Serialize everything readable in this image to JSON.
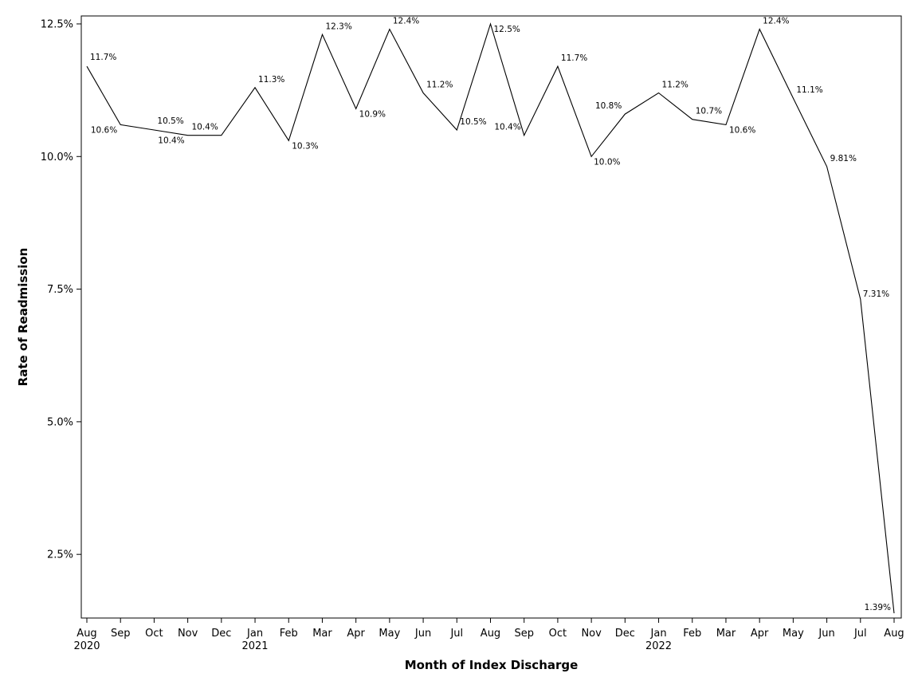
{
  "chart_data": {
    "type": "line",
    "title": "",
    "xlabel": "Month of Index Discharge",
    "ylabel": "Rate of Readmission",
    "ylim": [
      1.3,
      12.65
    ],
    "yticks": [
      2.5,
      5.0,
      7.5,
      10.0,
      12.5
    ],
    "ytick_labels": [
      "2.5%",
      "5.0%",
      "7.5%",
      "10.0%",
      "12.5%"
    ],
    "grid": false,
    "legend": "none",
    "line_color": "#000000",
    "x": [
      "Aug",
      "Sep",
      "Oct",
      "Nov",
      "Dec",
      "Jan",
      "Feb",
      "Mar",
      "Apr",
      "May",
      "Jun",
      "Jul",
      "Aug",
      "Sep",
      "Oct",
      "Nov",
      "Dec",
      "Jan",
      "Feb",
      "Mar",
      "Apr",
      "May",
      "Jun",
      "Jul",
      "Aug"
    ],
    "x_year_labels": [
      "2020",
      "",
      "",
      "",
      "",
      "2021",
      "",
      "",
      "",
      "",
      "",
      "",
      "",
      "",
      "",
      "",
      "",
      "2022",
      "",
      "",
      "",
      "",
      "",
      "",
      ""
    ],
    "series": [
      {
        "values": [
          11.7,
          10.6,
          10.5,
          10.4,
          10.4,
          11.3,
          10.3,
          12.3,
          10.9,
          12.4,
          11.2,
          10.5,
          12.5,
          10.4,
          11.7,
          10.0,
          10.8,
          11.2,
          10.7,
          10.6,
          12.4,
          11.1,
          9.81,
          7.31,
          1.39
        ],
        "labels": [
          "11.7%",
          "10.6%",
          "10.5%",
          "10.4%",
          "10.4%",
          "11.3%",
          "10.3%",
          "12.3%",
          "10.9%",
          "12.4%",
          "11.2%",
          "10.5%",
          "12.5%",
          "10.4%",
          "11.7%",
          "10.0%",
          "10.8%",
          "11.2%",
          "10.7%",
          "10.6%",
          "12.4%",
          "11.1%",
          "9.81%",
          "7.31%",
          "1.39%"
        ]
      }
    ]
  }
}
